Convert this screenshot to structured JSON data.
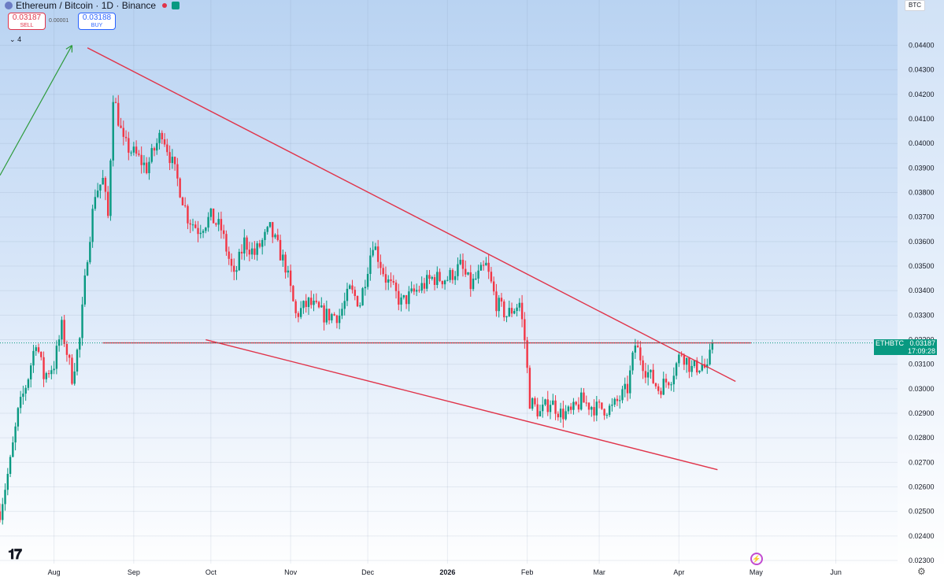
{
  "header": {
    "title": "Ethereum / Bitcoin · 1D · Binance"
  },
  "trade": {
    "sell_price": "0.03187",
    "sell_label": "SELL",
    "spread": "0.00001",
    "buy_price": "0.03188",
    "buy_label": "BUY"
  },
  "indicators": {
    "count_label": "4"
  },
  "currency_button": "BTC",
  "price_tag": {
    "symbol": "ETHBTC",
    "price": "0.03187",
    "countdown": "17:09:28"
  },
  "colors": {
    "up": "#089981",
    "down": "#f23645",
    "trendline": "#e0344a",
    "arrow": "#2e9b3c"
  },
  "icons": [
    "tradingview-logo-icon",
    "lightning-icon",
    "gear-icon"
  ],
  "chart_data": {
    "type": "candlestick",
    "title": "Ethereum / Bitcoin · 1D · Binance",
    "ylim": [
      0.023,
      0.0445
    ],
    "y_ticks": [
      "0.04400",
      "0.04300",
      "0.04200",
      "0.04100",
      "0.04000",
      "0.03900",
      "0.03800",
      "0.03700",
      "0.03600",
      "0.03500",
      "0.03400",
      "0.03300",
      "0.03200",
      "0.03100",
      "0.03000",
      "0.02900",
      "0.02800",
      "0.02700",
      "0.02600",
      "0.02500",
      "0.02400",
      "0.02300"
    ],
    "x_ticks": [
      {
        "label": "Aug",
        "date": "2025-08-01"
      },
      {
        "label": "Sep",
        "date": "2025-09-01"
      },
      {
        "label": "Oct",
        "date": "2025-10-01"
      },
      {
        "label": "Nov",
        "date": "2025-11-01"
      },
      {
        "label": "Dec",
        "date": "2025-12-01"
      },
      {
        "label": "2026",
        "date": "2026-01-01"
      },
      {
        "label": "Feb",
        "date": "2026-02-01"
      },
      {
        "label": "Mar",
        "date": "2026-03-01"
      },
      {
        "label": "Apr",
        "date": "2026-04-01"
      },
      {
        "label": "May",
        "date": "2026-05-01"
      },
      {
        "label": "Jun",
        "date": "2026-06-01"
      }
    ],
    "x_range": [
      "2025-07-11",
      "2026-06-25"
    ],
    "anchors": [
      {
        "date": "2025-07-11",
        "close": 0.025
      },
      {
        "date": "2025-07-15",
        "close": 0.027
      },
      {
        "date": "2025-07-18",
        "close": 0.029
      },
      {
        "date": "2025-07-22",
        "close": 0.0305
      },
      {
        "date": "2025-07-25",
        "close": 0.032
      },
      {
        "date": "2025-07-28",
        "close": 0.0305
      },
      {
        "date": "2025-08-01",
        "close": 0.031
      },
      {
        "date": "2025-08-04",
        "close": 0.0325
      },
      {
        "date": "2025-08-08",
        "close": 0.0305
      },
      {
        "date": "2025-08-11",
        "close": 0.032
      },
      {
        "date": "2025-08-14",
        "close": 0.0355
      },
      {
        "date": "2025-08-17",
        "close": 0.038
      },
      {
        "date": "2025-08-20",
        "close": 0.0385
      },
      {
        "date": "2025-08-22",
        "close": 0.037
      },
      {
        "date": "2025-08-24",
        "close": 0.042
      },
      {
        "date": "2025-08-26",
        "close": 0.041
      },
      {
        "date": "2025-08-28",
        "close": 0.04
      },
      {
        "date": "2025-09-02",
        "close": 0.0395
      },
      {
        "date": "2025-09-06",
        "close": 0.039
      },
      {
        "date": "2025-09-12",
        "close": 0.0405
      },
      {
        "date": "2025-09-18",
        "close": 0.0385
      },
      {
        "date": "2025-09-22",
        "close": 0.037
      },
      {
        "date": "2025-09-26",
        "close": 0.0365
      },
      {
        "date": "2025-10-01",
        "close": 0.037
      },
      {
        "date": "2025-10-05",
        "close": 0.0365
      },
      {
        "date": "2025-10-10",
        "close": 0.0345
      },
      {
        "date": "2025-10-14",
        "close": 0.036
      },
      {
        "date": "2025-10-18",
        "close": 0.0355
      },
      {
        "date": "2025-10-24",
        "close": 0.0365
      },
      {
        "date": "2025-10-30",
        "close": 0.035
      },
      {
        "date": "2025-11-03",
        "close": 0.033
      },
      {
        "date": "2025-11-08",
        "close": 0.0335
      },
      {
        "date": "2025-11-14",
        "close": 0.033
      },
      {
        "date": "2025-11-20",
        "close": 0.033
      },
      {
        "date": "2025-11-24",
        "close": 0.034
      },
      {
        "date": "2025-11-28",
        "close": 0.0335
      },
      {
        "date": "2025-12-03",
        "close": 0.036
      },
      {
        "date": "2025-12-08",
        "close": 0.0345
      },
      {
        "date": "2025-12-14",
        "close": 0.0335
      },
      {
        "date": "2025-12-20",
        "close": 0.034
      },
      {
        "date": "2025-12-26",
        "close": 0.0345
      },
      {
        "date": "2026-01-01",
        "close": 0.0345
      },
      {
        "date": "2026-01-06",
        "close": 0.035
      },
      {
        "date": "2026-01-10",
        "close": 0.0342
      },
      {
        "date": "2026-01-16",
        "close": 0.035
      },
      {
        "date": "2026-01-20",
        "close": 0.0335
      },
      {
        "date": "2026-01-24",
        "close": 0.033
      },
      {
        "date": "2026-01-29",
        "close": 0.0335
      },
      {
        "date": "2026-01-31",
        "close": 0.032
      },
      {
        "date": "2026-02-02",
        "close": 0.0295
      },
      {
        "date": "2026-02-06",
        "close": 0.029
      },
      {
        "date": "2026-02-10",
        "close": 0.0295
      },
      {
        "date": "2026-02-14",
        "close": 0.029
      },
      {
        "date": "2026-02-18",
        "close": 0.029
      },
      {
        "date": "2026-02-22",
        "close": 0.0295
      },
      {
        "date": "2026-02-28",
        "close": 0.0292
      },
      {
        "date": "2026-03-06",
        "close": 0.0292
      },
      {
        "date": "2026-03-12",
        "close": 0.03
      },
      {
        "date": "2026-03-15",
        "close": 0.0318
      },
      {
        "date": "2026-03-19",
        "close": 0.0308
      },
      {
        "date": "2026-03-24",
        "close": 0.03
      },
      {
        "date": "2026-03-29",
        "close": 0.0305
      },
      {
        "date": "2026-04-02",
        "close": 0.0315
      },
      {
        "date": "2026-04-06",
        "close": 0.0308
      },
      {
        "date": "2026-04-10",
        "close": 0.031
      },
      {
        "date": "2026-04-12",
        "close": 0.0307
      },
      {
        "date": "2026-04-14",
        "close": 0.03187
      }
    ],
    "annotations": [
      {
        "type": "trendline",
        "from": [
          "2025-08-14",
          0.0439
        ],
        "to": [
          "2026-04-23",
          0.0303
        ]
      },
      {
        "type": "trendline",
        "from": [
          "2025-09-29",
          0.032
        ],
        "to": [
          "2026-04-16",
          0.0267
        ]
      },
      {
        "type": "horizontal",
        "from": [
          "2025-08-20",
          0.03187
        ],
        "to": [
          "2026-04-29",
          0.03187
        ]
      },
      {
        "type": "arrow",
        "from": [
          "2025-07-11",
          0.0387
        ],
        "to": [
          "2025-08-08",
          0.044
        ]
      }
    ]
  }
}
